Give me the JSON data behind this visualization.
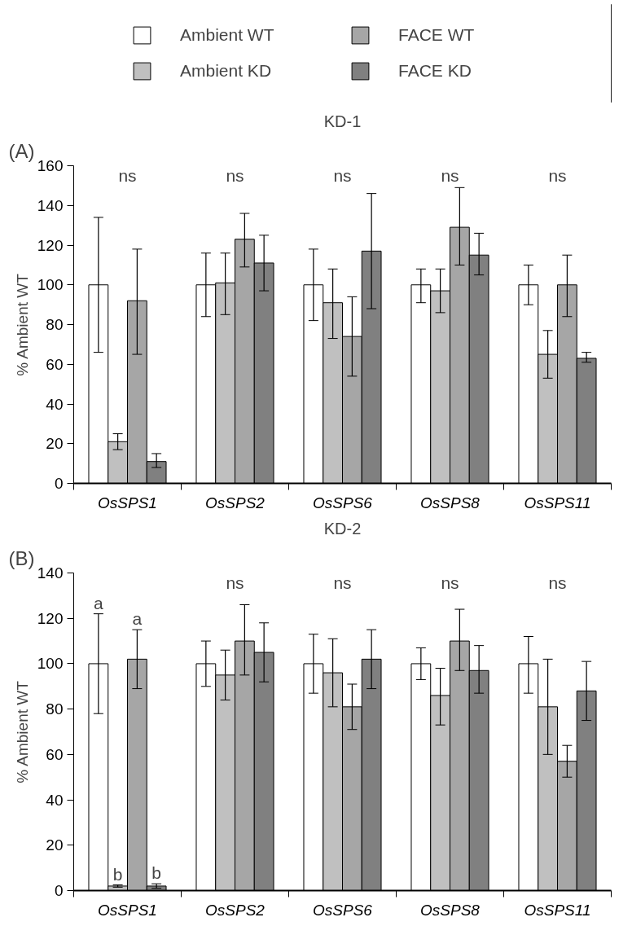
{
  "chart_data": [
    {
      "type": "bar",
      "title": "KD-1",
      "ylabel": "% Ambient WT",
      "categories": [
        "OsSPS1",
        "OsSPS2",
        "OsSPS6",
        "OsSPS8",
        "OsSPS11"
      ],
      "ylim": [
        0,
        160
      ],
      "yticks": [
        0,
        20,
        40,
        60,
        80,
        100,
        120,
        140,
        160
      ],
      "grid": false,
      "legend": "top",
      "series": [
        {
          "name": "Ambient WT",
          "color": "#ffffff",
          "values": [
            100,
            100,
            100,
            100,
            100
          ],
          "errors": [
            [
              66,
              134
            ],
            [
              84,
              116
            ],
            [
              82,
              118
            ],
            [
              91,
              108
            ],
            [
              90,
              110
            ]
          ]
        },
        {
          "name": "Ambient KD",
          "color": "#c0c0c0",
          "values": [
            21,
            101,
            91,
            97,
            65
          ],
          "errors": [
            [
              17,
              25
            ],
            [
              85,
              116
            ],
            [
              73,
              108
            ],
            [
              86,
              108
            ],
            [
              53,
              77
            ]
          ]
        },
        {
          "name": "FACE WT",
          "color": "#a6a6a6",
          "values": [
            92,
            123,
            74,
            129,
            100
          ],
          "errors": [
            [
              65,
              118
            ],
            [
              109,
              136
            ],
            [
              54,
              94
            ],
            [
              110,
              149
            ],
            [
              84,
              115
            ]
          ]
        },
        {
          "name": "FACE KD",
          "color": "#808080",
          "values": [
            11,
            111,
            117,
            115,
            63
          ],
          "errors": [
            [
              8,
              15
            ],
            [
              97,
              125
            ],
            [
              88,
              146
            ],
            [
              105,
              126
            ],
            [
              61,
              66
            ]
          ]
        }
      ],
      "annotations": [
        "(A)",
        "ns",
        "ns",
        "ns",
        "ns",
        "ns"
      ]
    },
    {
      "type": "bar",
      "title": "KD-2",
      "ylabel": "% Ambient WT",
      "categories": [
        "OsSPS1",
        "OsSPS2",
        "OsSPS6",
        "OsSPS8",
        "OsSPS11"
      ],
      "ylim": [
        0,
        140
      ],
      "yticks": [
        0,
        20,
        40,
        60,
        80,
        100,
        120,
        140
      ],
      "grid": false,
      "series": [
        {
          "color": "#ffffff",
          "values": [
            100,
            100,
            100,
            100,
            100
          ],
          "errors": [
            [
              78,
              122
            ],
            [
              90,
              110
            ],
            [
              87,
              113
            ],
            [
              93,
              107
            ],
            [
              87,
              112
            ]
          ],
          "value_labels": [
            "a",
            null,
            null,
            null,
            null
          ]
        },
        {
          "color": "#c0c0c0",
          "values": [
            2,
            95,
            96,
            86,
            81
          ],
          "errors": [
            [
              1.5,
              2.5
            ],
            [
              84,
              106
            ],
            [
              81,
              111
            ],
            [
              73,
              98
            ],
            [
              60,
              102
            ]
          ],
          "value_labels": [
            "b",
            null,
            null,
            null,
            null
          ]
        },
        {
          "color": "#a6a6a6",
          "values": [
            102,
            110,
            81,
            110,
            57
          ],
          "errors": [
            [
              89,
              115
            ],
            [
              95,
              126
            ],
            [
              71,
              91
            ],
            [
              97,
              124
            ],
            [
              50,
              64
            ]
          ],
          "value_labels": [
            "a",
            null,
            null,
            null,
            null
          ]
        },
        {
          "color": "#808080",
          "values": [
            2,
            105,
            102,
            97,
            88
          ],
          "errors": [
            [
              1,
              3
            ],
            [
              92,
              118
            ],
            [
              89,
              115
            ],
            [
              87,
              108
            ],
            [
              75,
              101
            ]
          ],
          "value_labels": [
            "b",
            null,
            null,
            null,
            null
          ]
        }
      ],
      "annotations": [
        "(B)",
        "ns",
        "ns",
        "ns",
        "ns"
      ]
    }
  ]
}
